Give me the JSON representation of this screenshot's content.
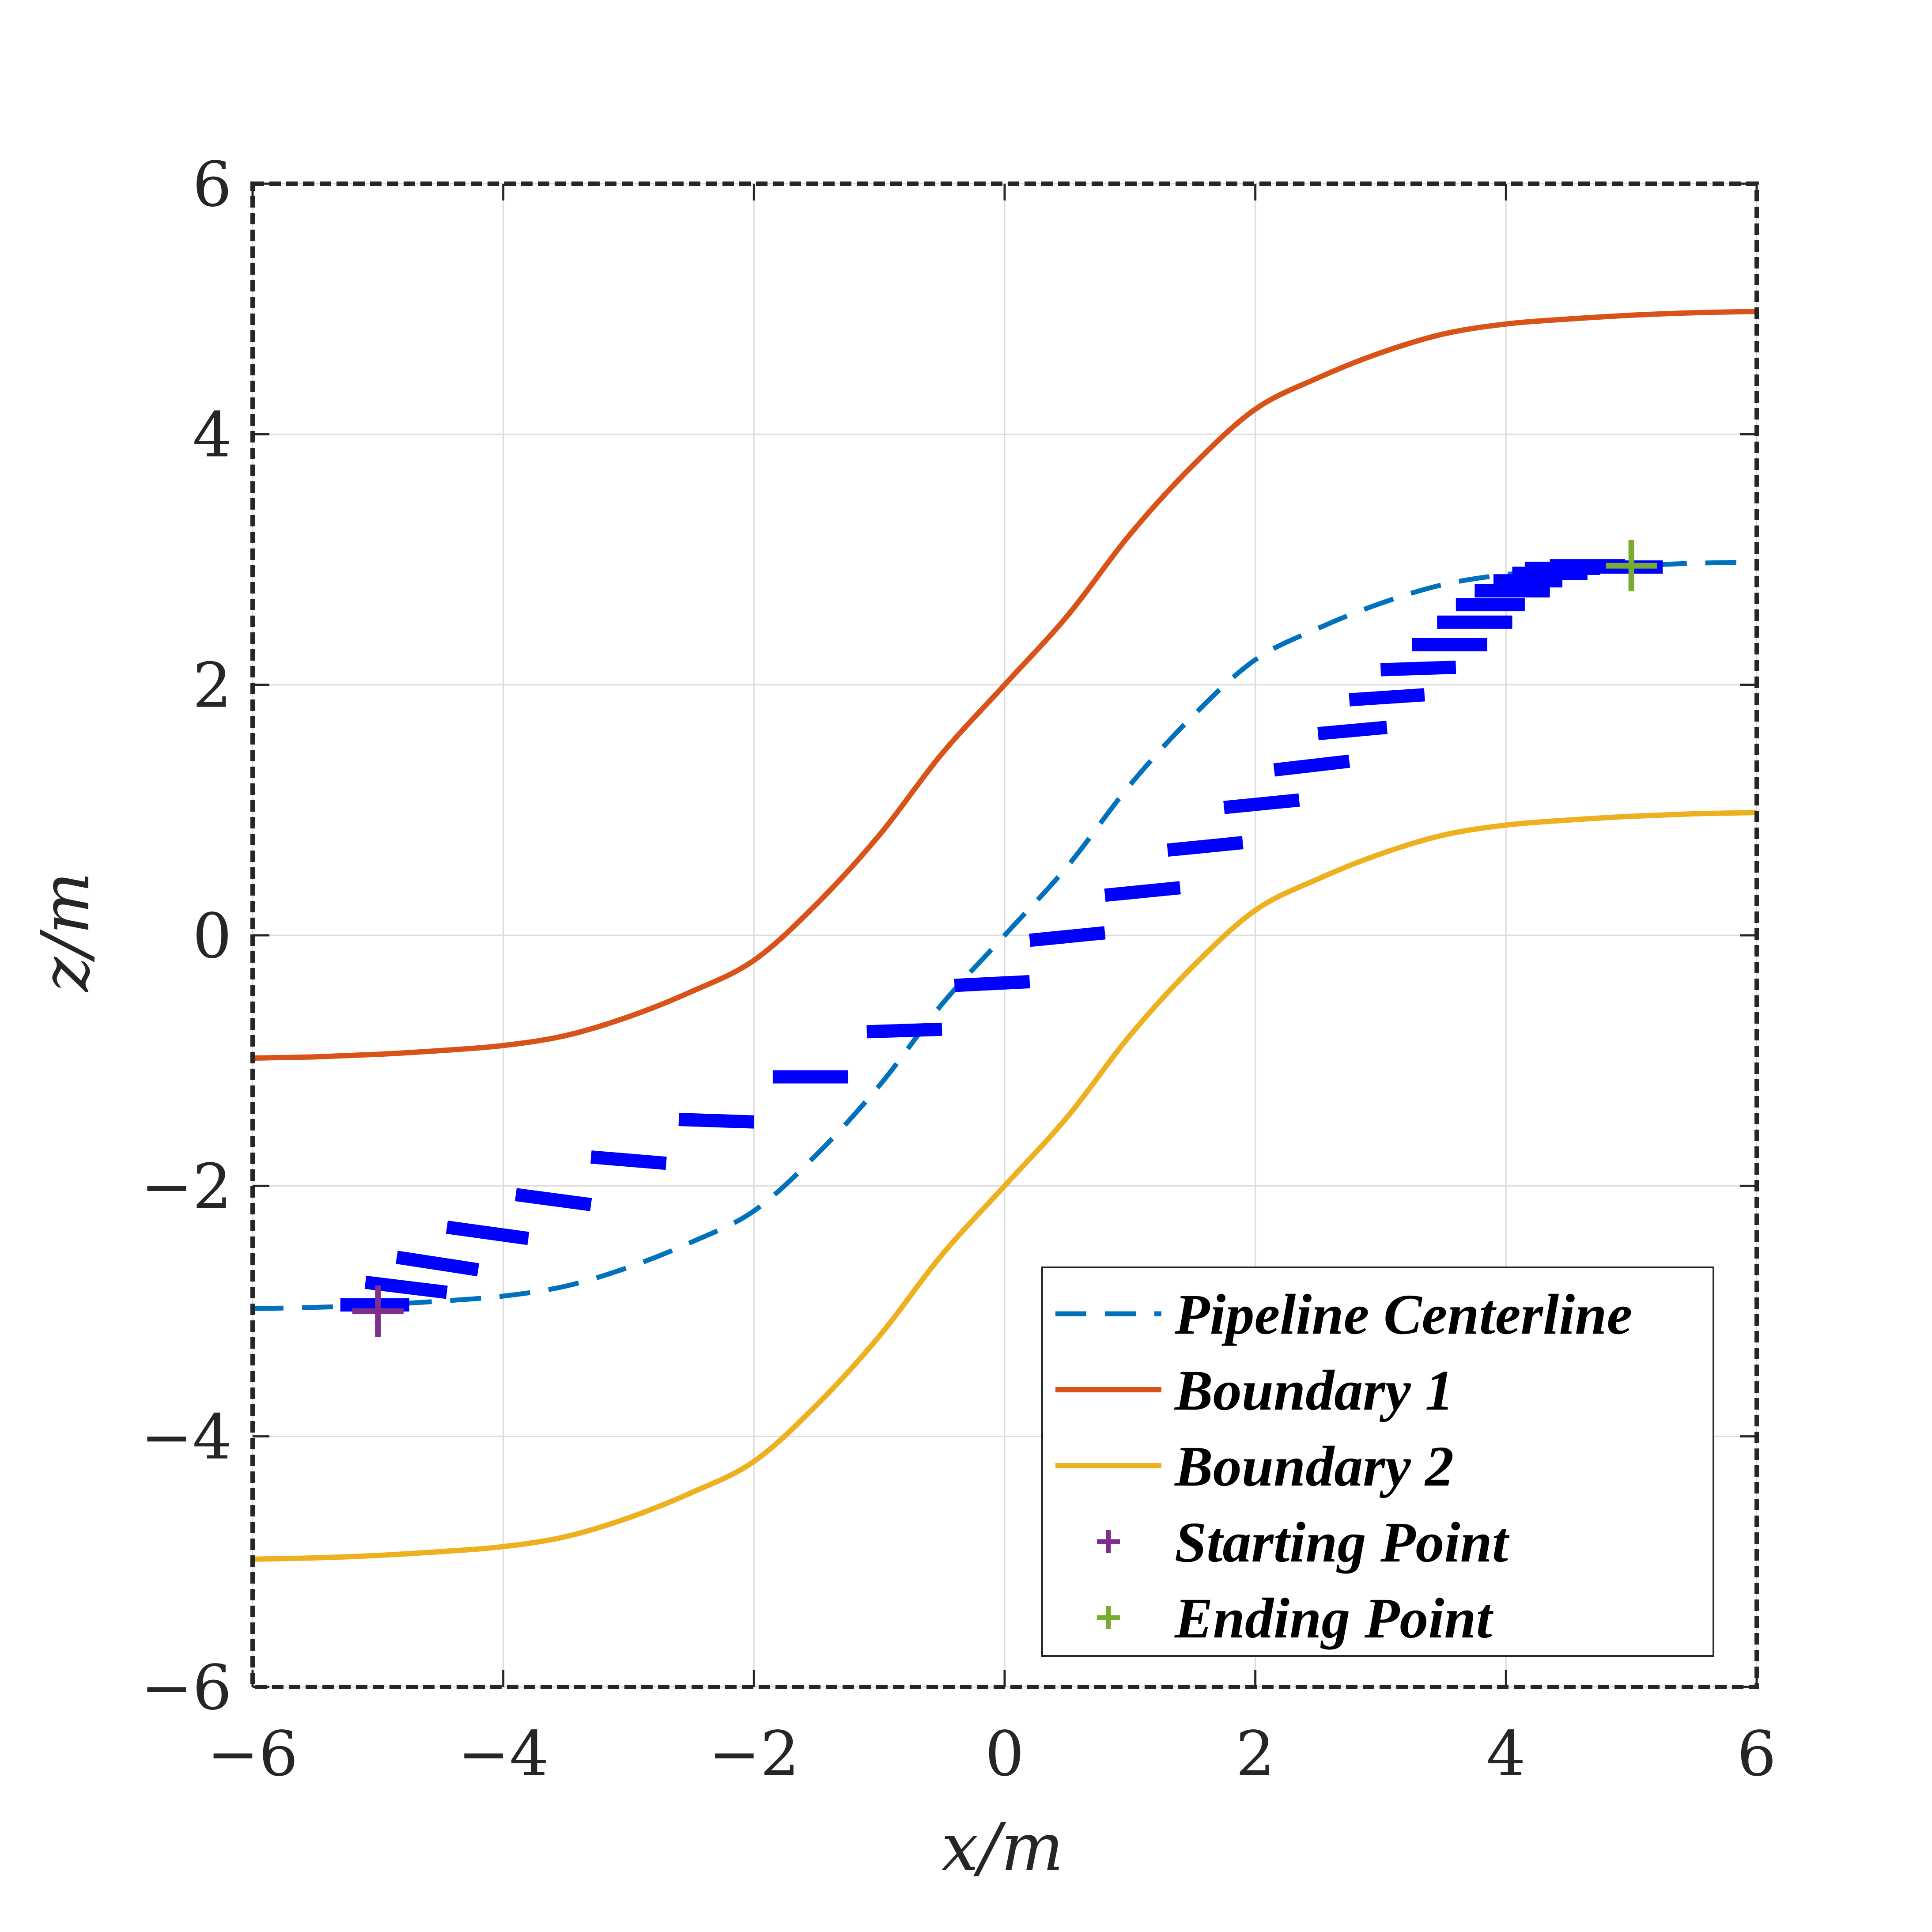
{
  "chart_data": {
    "type": "line",
    "title": "",
    "xlabel": "x/m",
    "ylabel": "z/m",
    "xlim": [
      -6,
      6
    ],
    "ylim": [
      -6,
      6
    ],
    "xticks": [
      -6,
      -4,
      -2,
      0,
      2,
      4,
      6
    ],
    "yticks": [
      -6,
      -4,
      -2,
      0,
      2,
      4,
      6
    ],
    "xtick_labels": [
      "−6",
      "−4",
      "−2",
      "0",
      "2",
      "4",
      "6"
    ],
    "ytick_labels": [
      "−6",
      "−4",
      "−2",
      "0",
      "2",
      "4",
      "6"
    ],
    "grid": true,
    "legend_position": "bottom-right",
    "series": [
      {
        "name": "Pipeline Centerline",
        "style": "dashed",
        "color": "#0072BD",
        "x": [
          -6,
          -5.5,
          -5,
          -4.5,
          -4,
          -3.5,
          -3,
          -2.5,
          -2,
          -1.5,
          -1,
          -0.5,
          0,
          0.5,
          1,
          1.5,
          2,
          2.5,
          3,
          3.5,
          4,
          4.5,
          5,
          5.5,
          6
        ],
        "y": [
          -2.98,
          -2.97,
          -2.95,
          -2.92,
          -2.88,
          -2.8,
          -2.65,
          -2.45,
          -2.2,
          -1.75,
          -1.2,
          -0.55,
          0,
          0.55,
          1.2,
          1.75,
          2.2,
          2.45,
          2.65,
          2.8,
          2.88,
          2.92,
          2.95,
          2.97,
          2.98
        ]
      },
      {
        "name": "Boundary 1",
        "style": "solid",
        "color": "#D95319",
        "x": [
          -6,
          -5.5,
          -5,
          -4.5,
          -4,
          -3.5,
          -3,
          -2.5,
          -2,
          -1.5,
          -1,
          -0.5,
          0,
          0.5,
          1,
          1.5,
          2,
          2.5,
          3,
          3.5,
          4,
          4.5,
          5,
          5.5,
          6
        ],
        "y": [
          -0.98,
          -0.97,
          -0.95,
          -0.92,
          -0.88,
          -0.8,
          -0.65,
          -0.45,
          -0.2,
          0.25,
          0.8,
          1.45,
          2,
          2.55,
          3.2,
          3.75,
          4.2,
          4.45,
          4.65,
          4.8,
          4.88,
          4.92,
          4.95,
          4.97,
          4.98
        ]
      },
      {
        "name": "Boundary 2",
        "style": "solid",
        "color": "#EDB120",
        "x": [
          -6,
          -5.5,
          -5,
          -4.5,
          -4,
          -3.5,
          -3,
          -2.5,
          -2,
          -1.5,
          -1,
          -0.5,
          0,
          0.5,
          1,
          1.5,
          2,
          2.5,
          3,
          3.5,
          4,
          4.5,
          5,
          5.5,
          6
        ],
        "y": [
          -4.98,
          -4.97,
          -4.95,
          -4.92,
          -4.88,
          -4.8,
          -4.65,
          -4.45,
          -4.2,
          -3.75,
          -3.2,
          -2.55,
          -2,
          -1.45,
          -0.8,
          -0.25,
          0.2,
          0.45,
          0.65,
          0.8,
          0.88,
          0.92,
          0.95,
          0.97,
          0.98
        ]
      },
      {
        "name": "Starting Point",
        "style": "marker",
        "color": "#7E2F8E",
        "x": [
          -5
        ],
        "y": [
          -3
        ]
      },
      {
        "name": "Ending Point",
        "style": "marker",
        "color": "#77AC30",
        "x": [
          5
        ],
        "y": [
          2.95
        ]
      },
      {
        "name": "",
        "style": "segments",
        "color": "#0000FF",
        "segments": [
          [
            -5.3,
            -2.95,
            -4.75,
            -2.95
          ],
          [
            -5.1,
            -2.77,
            -4.45,
            -2.85
          ],
          [
            -4.85,
            -2.57,
            -4.2,
            -2.67
          ],
          [
            -4.45,
            -2.33,
            -3.8,
            -2.42
          ],
          [
            -3.9,
            -2.07,
            -3.3,
            -2.15
          ],
          [
            -3.3,
            -1.77,
            -2.7,
            -1.82
          ],
          [
            -2.6,
            -1.47,
            -2.0,
            -1.49
          ],
          [
            -1.85,
            -1.13,
            -1.25,
            -1.13
          ],
          [
            -1.1,
            -0.77,
            -0.5,
            -0.75
          ],
          [
            -0.4,
            -0.4,
            0.2,
            -0.37
          ],
          [
            0.2,
            -0.04,
            0.8,
            0.02
          ],
          [
            0.8,
            0.32,
            1.4,
            0.38
          ],
          [
            1.3,
            0.68,
            1.9,
            0.74
          ],
          [
            1.75,
            1.02,
            2.35,
            1.08
          ],
          [
            2.15,
            1.32,
            2.75,
            1.39
          ],
          [
            2.5,
            1.61,
            3.05,
            1.66
          ],
          [
            2.75,
            1.88,
            3.35,
            1.92
          ],
          [
            3.0,
            2.12,
            3.6,
            2.14
          ],
          [
            3.25,
            2.32,
            3.85,
            2.32
          ],
          [
            3.45,
            2.5,
            4.05,
            2.5
          ],
          [
            3.6,
            2.64,
            4.15,
            2.64
          ],
          [
            3.75,
            2.75,
            4.35,
            2.75
          ],
          [
            3.9,
            2.83,
            4.45,
            2.83
          ],
          [
            4.05,
            2.89,
            4.65,
            2.89
          ],
          [
            4.15,
            2.93,
            4.75,
            2.93
          ],
          [
            4.35,
            2.95,
            4.95,
            2.95
          ],
          [
            4.65,
            2.94,
            5.25,
            2.94
          ]
        ]
      }
    ]
  },
  "legend": {
    "items": [
      {
        "label": "Pipeline Centerline",
        "color": "#0072BD",
        "style": "dashed"
      },
      {
        "label": "Boundary 1",
        "color": "#D95319",
        "style": "solid"
      },
      {
        "label": "Boundary 2",
        "color": "#EDB120",
        "style": "solid"
      },
      {
        "label": "Starting Point",
        "color": "#7E2F8E",
        "style": "marker"
      },
      {
        "label": "Ending Point",
        "color": "#77AC30",
        "style": "marker"
      }
    ]
  }
}
